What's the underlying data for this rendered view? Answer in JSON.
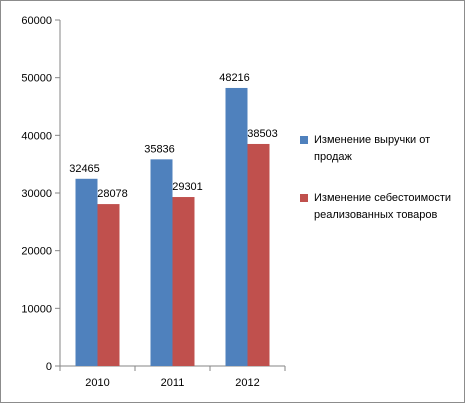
{
  "chart_data": {
    "type": "bar",
    "categories": [
      "2010",
      "2011",
      "2012"
    ],
    "series": [
      {
        "name": "Изменение  выручки от продаж",
        "values": [
          32465,
          35836,
          48216
        ],
        "color": "#4f81bd"
      },
      {
        "name": "Изменение себестоимости реализованных товаров",
        "values": [
          28078,
          29301,
          38503
        ],
        "color": "#c0504d"
      }
    ],
    "yticks": [
      "0",
      "10000",
      "20000",
      "30000",
      "40000",
      "50000",
      "60000"
    ],
    "ylim": [
      0,
      60000
    ],
    "data_labels": [
      [
        "32465",
        "35836",
        "48216"
      ],
      [
        "28078",
        "29301",
        "38503"
      ]
    ],
    "grid": false,
    "legend_position": "right"
  }
}
